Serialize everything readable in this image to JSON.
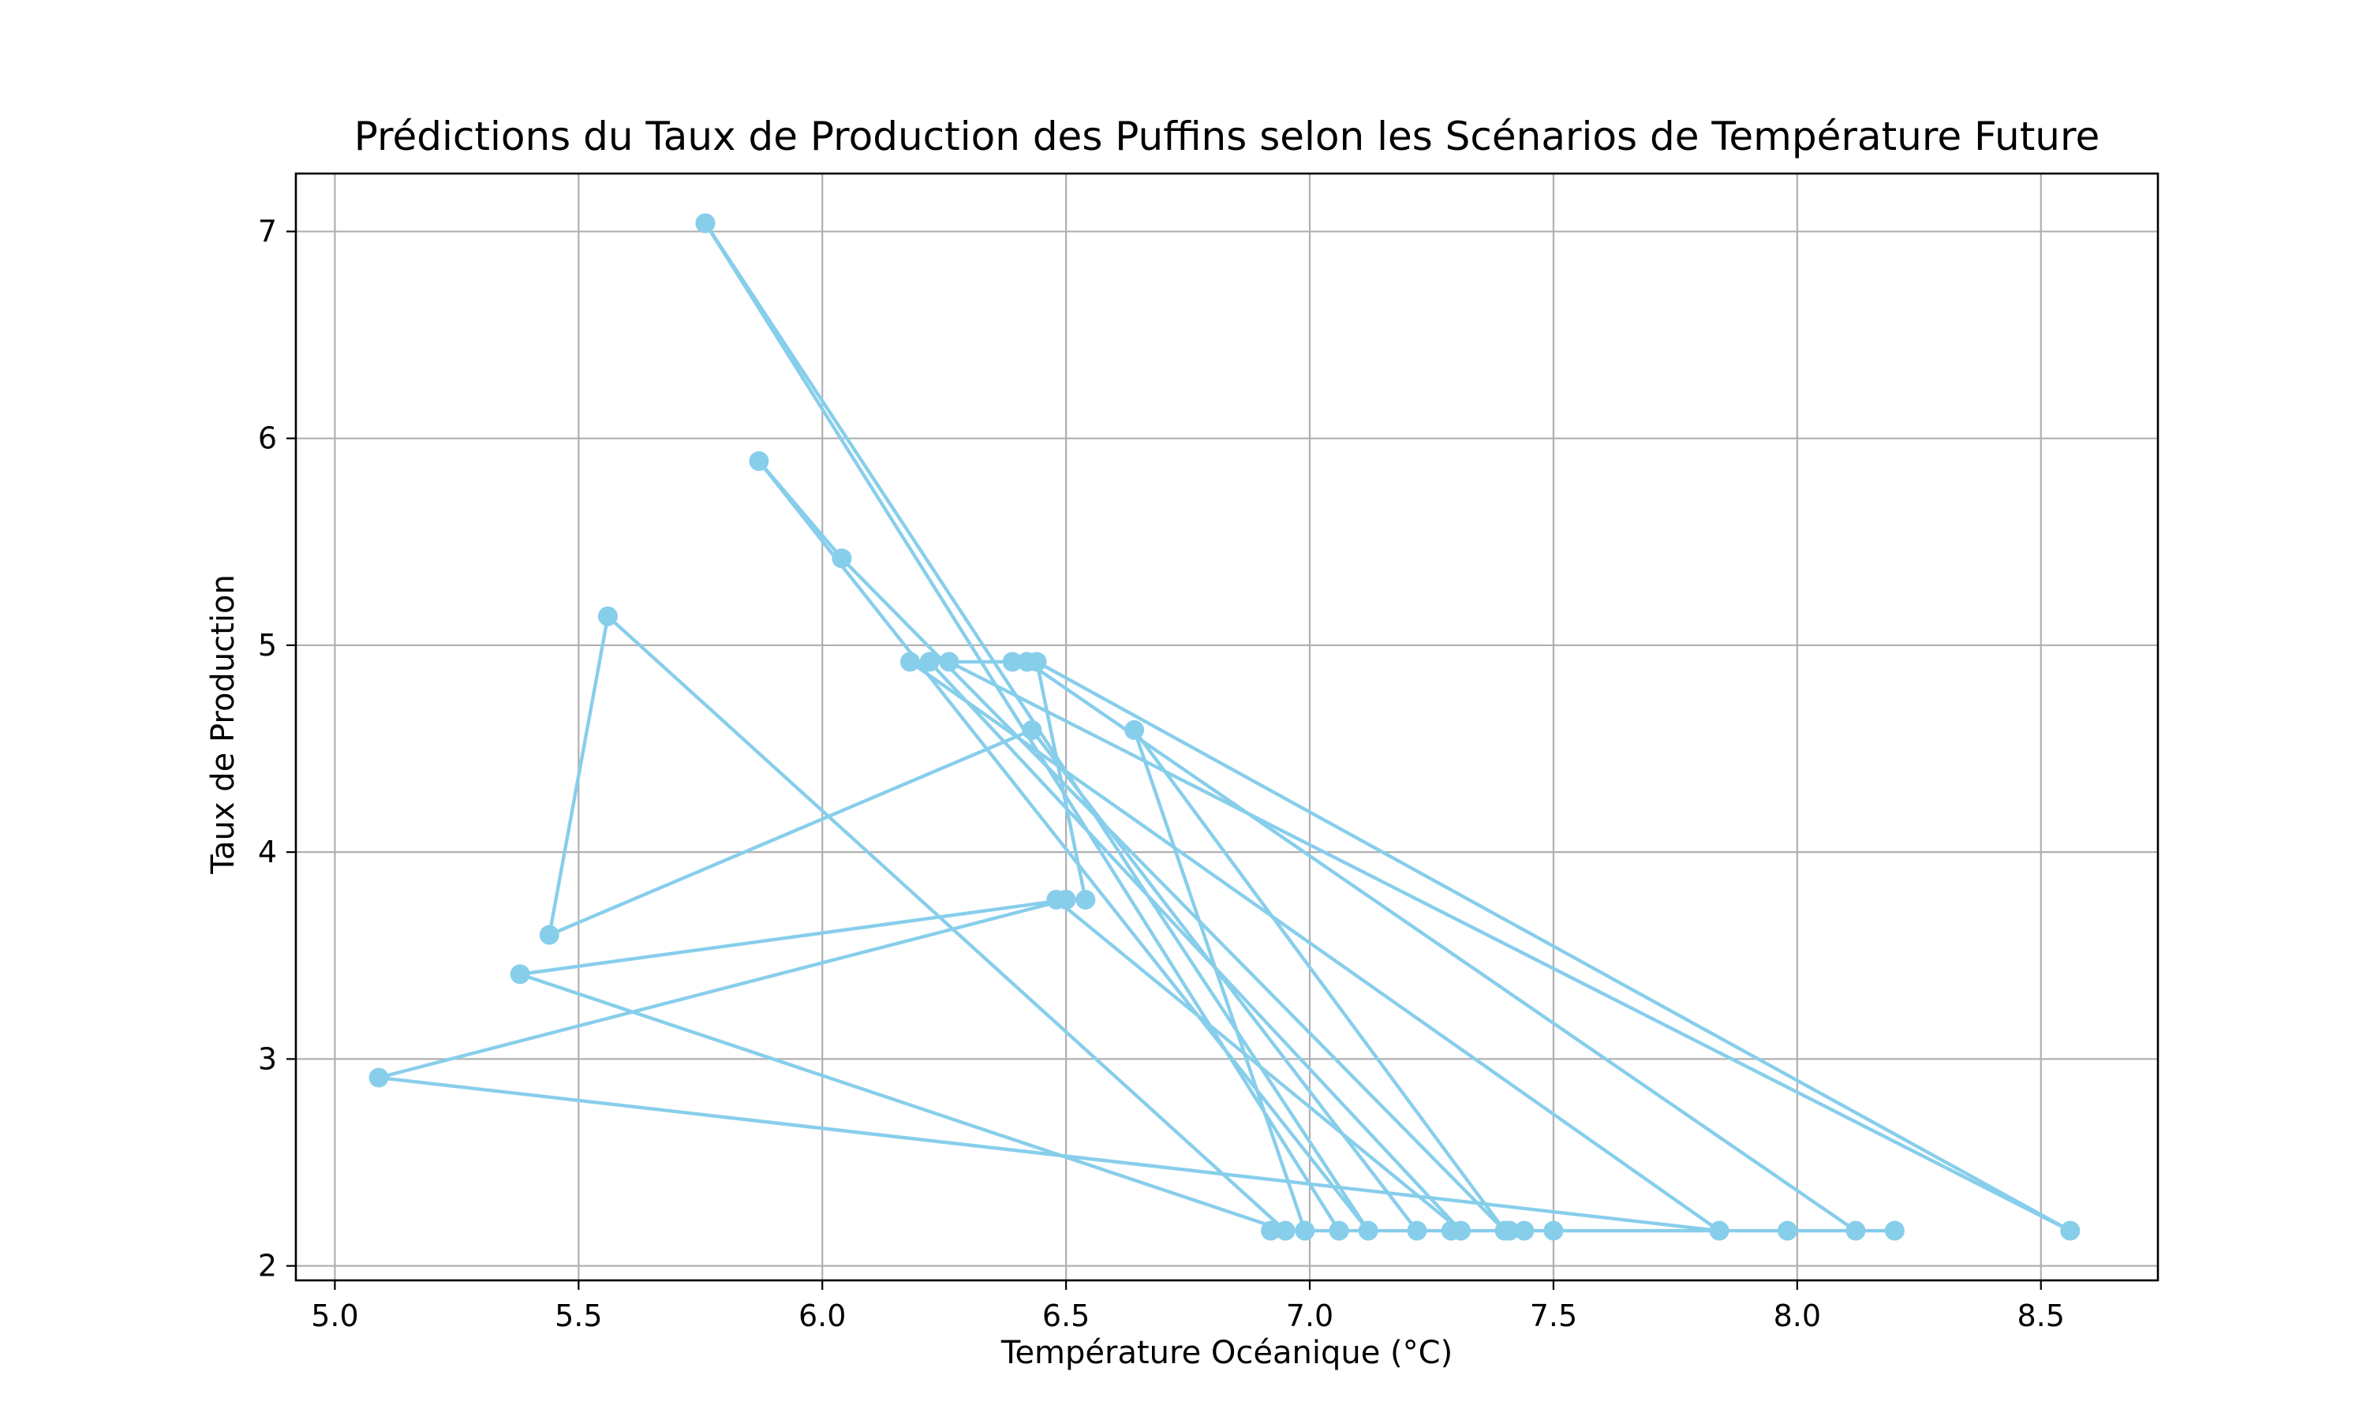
{
  "chart_data": {
    "type": "line",
    "title": "Prédictions du Taux de Production des Puffins selon les Scénarios de Température Future",
    "xlabel": "Température Océanique (°C)",
    "ylabel": "Taux de Production",
    "xlim": [
      4.92,
      8.74
    ],
    "ylim": [
      1.93,
      7.28
    ],
    "x_ticks": [
      5.0,
      5.5,
      6.0,
      6.5,
      7.0,
      7.5,
      8.0,
      8.5
    ],
    "x_tick_labels": [
      "5.0",
      "5.5",
      "6.0",
      "6.5",
      "7.0",
      "7.5",
      "8.0",
      "8.5"
    ],
    "y_ticks": [
      2,
      3,
      4,
      5,
      6,
      7
    ],
    "y_tick_labels": [
      "2",
      "3",
      "4",
      "5",
      "6",
      "7"
    ],
    "grid": true,
    "legend": "none",
    "color": "#87ceeb",
    "marker": "circle",
    "series": [
      {
        "x": [
          5.76,
          7.06,
          5.76,
          7.12,
          5.87,
          6.04,
          7.4,
          6.64,
          6.99,
          7.44,
          8.12,
          6.42,
          6.39,
          6.22,
          7.31,
          6.48,
          6.54,
          6.44,
          8.56,
          6.26,
          6.18,
          7.84,
          5.09,
          6.5,
          5.38,
          6.95,
          5.56,
          5.44,
          6.43,
          7.22,
          7.98,
          8.2,
          7.29,
          7.5,
          6.92,
          7.41
        ],
        "y": [
          7.04,
          2.17,
          7.04,
          2.17,
          5.89,
          5.42,
          2.17,
          4.59,
          2.17,
          2.17,
          2.17,
          4.92,
          4.92,
          4.92,
          2.17,
          3.77,
          3.77,
          4.92,
          2.17,
          4.92,
          4.92,
          2.17,
          2.91,
          3.77,
          3.41,
          2.17,
          5.14,
          3.6,
          4.59,
          2.17,
          2.17,
          2.17,
          2.17,
          2.17,
          2.17,
          2.17
        ]
      }
    ]
  }
}
